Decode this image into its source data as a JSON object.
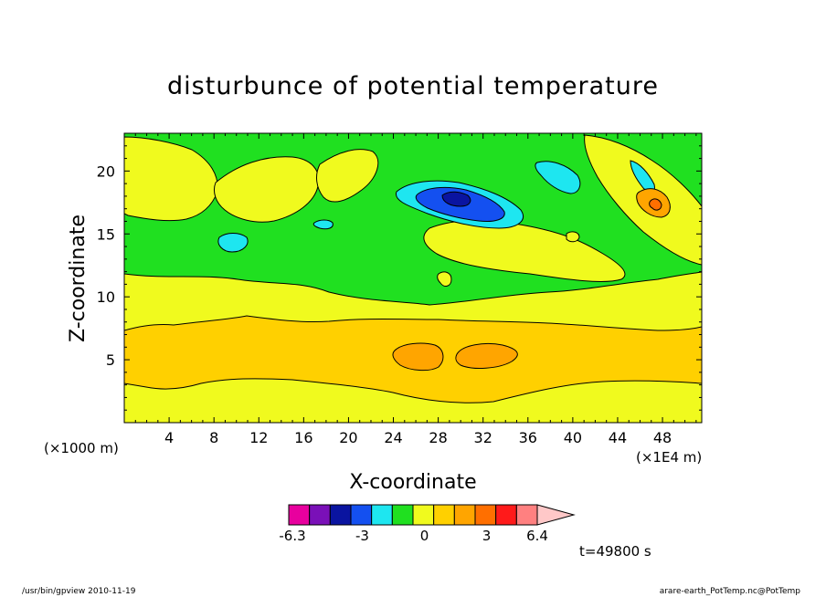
{
  "chart_data": {
    "type": "heatmap",
    "title": "disturbunce of potential temperature",
    "xlabel": "X-coordinate",
    "ylabel": "Z-coordinate",
    "x_unit_left": "(×1000 m)",
    "x_unit_right": "(×1E4 m)",
    "xlim": [
      0,
      51.5
    ],
    "ylim": [
      0,
      23
    ],
    "x_ticks": [
      "4",
      "8",
      "12",
      "16",
      "20",
      "24",
      "28",
      "32",
      "36",
      "40",
      "44",
      "48"
    ],
    "y_ticks": [
      "5",
      "10",
      "15",
      "20"
    ],
    "time_label": "t=49800 s",
    "colorbar": {
      "tick_labels": [
        "-6.3",
        "-3",
        "0",
        "3",
        "6.4"
      ],
      "colors": [
        "#e8009e",
        "#7a10b8",
        "#0a14a0",
        "#1450f0",
        "#1ee6f0",
        "#20e020",
        "#f0fa1e",
        "#ffd000",
        "#ffa500",
        "#ff6f00",
        "#ff1a1a",
        "#ff8080",
        "#ffc8c8"
      ]
    },
    "fields": {
      "background": "#20e020",
      "lower_yellow": "#f0fa1e",
      "lower_orange": "#ffd000",
      "core_orange": "#ffa500"
    }
  },
  "footer": {
    "left": "/usr/bin/gpview   2010-11-19",
    "right": "arare-earth_PotTemp.nc@PotTemp"
  }
}
